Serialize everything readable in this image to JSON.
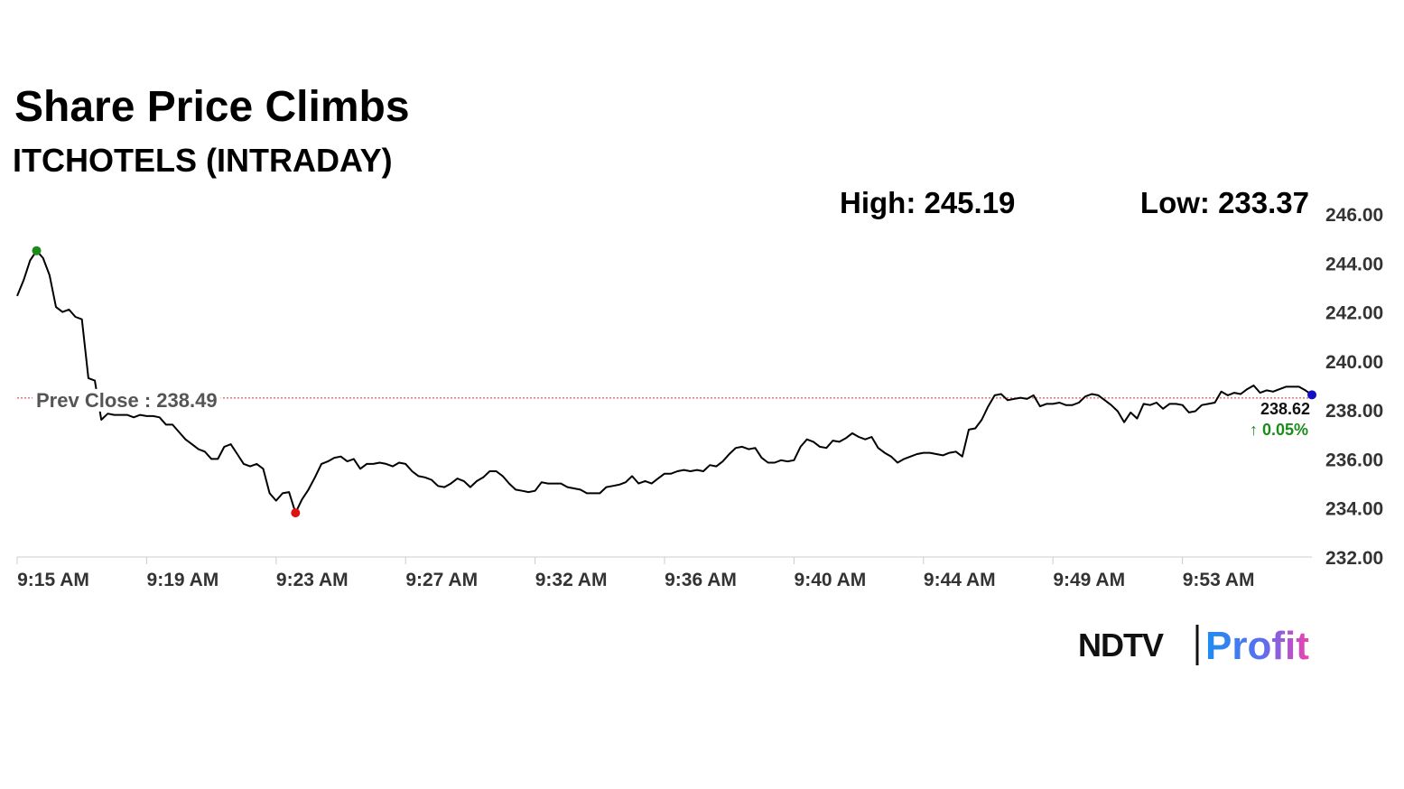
{
  "chart_data": {
    "type": "line",
    "title": "Share Price Climbs",
    "subtitle": "ITCHOTELS (INTRADAY)",
    "high_label": "High: 245.19",
    "low_label": "Low: 233.37",
    "last_price_label": "238.62",
    "change_label": "↑ 0.05%",
    "prev_close": {
      "value": 238.49,
      "label": "Prev Close : 238.49",
      "color": "#d03030"
    },
    "color": "#000000",
    "high_color": "#1a8c1a",
    "low_color": "#e01010",
    "last_color": "#1010c0",
    "categories": [
      "9:15 AM",
      null,
      null,
      null,
      null,
      null,
      null,
      null,
      null,
      null,
      null,
      null,
      null,
      null,
      null,
      null,
      null,
      null,
      null,
      null,
      "9:19 AM",
      null,
      null,
      null,
      null,
      null,
      null,
      null,
      null,
      null,
      null,
      null,
      null,
      null,
      null,
      null,
      null,
      null,
      null,
      null,
      "9:23 AM",
      null,
      null,
      null,
      null,
      null,
      null,
      null,
      null,
      null,
      null,
      null,
      null,
      null,
      null,
      null,
      null,
      null,
      null,
      null,
      "9:27 AM",
      null,
      null,
      null,
      null,
      null,
      null,
      null,
      null,
      null,
      null,
      null,
      null,
      null,
      null,
      null,
      null,
      null,
      null,
      null,
      "9:32 AM",
      null,
      null,
      null,
      null,
      null,
      null,
      null,
      null,
      null,
      null,
      null,
      null,
      null,
      null,
      null,
      null,
      null,
      null,
      null,
      "9:36 AM",
      null,
      null,
      null,
      null,
      null,
      null,
      null,
      null,
      null,
      null,
      null,
      null,
      null,
      null,
      null,
      null,
      null,
      null,
      null,
      "9:40 AM",
      null,
      null,
      null,
      null,
      null,
      null,
      null,
      null,
      null,
      null,
      null,
      null,
      null,
      null,
      null,
      null,
      null,
      null,
      null,
      "9:44 AM",
      null,
      null,
      null,
      null,
      null,
      null,
      null,
      null,
      null,
      null,
      null,
      null,
      null,
      null,
      null,
      null,
      null,
      null,
      null,
      "9:49 AM",
      null,
      null,
      null,
      null,
      null,
      null,
      null,
      null,
      null,
      null,
      null,
      null,
      null,
      null,
      null,
      null,
      null,
      null,
      null,
      "9:53 AM",
      null,
      null,
      null,
      null,
      null,
      null,
      null,
      null,
      null,
      null,
      null,
      null,
      null,
      null,
      null,
      null,
      null,
      null,
      null,
      null
    ],
    "values": [
      242.65,
      243.3,
      244.1,
      244.5,
      244.2,
      243.5,
      242.2,
      242.0,
      242.1,
      241.8,
      241.7,
      239.3,
      239.2,
      237.6,
      237.85,
      237.8,
      237.8,
      237.8,
      237.7,
      237.8,
      237.75,
      237.75,
      237.7,
      237.4,
      237.4,
      237.1,
      236.8,
      236.6,
      236.4,
      236.3,
      236.0,
      236.0,
      236.5,
      236.6,
      236.2,
      235.8,
      235.7,
      235.8,
      235.6,
      234.6,
      234.3,
      234.6,
      234.65,
      233.8,
      234.35,
      234.75,
      235.25,
      235.8,
      235.9,
      236.05,
      236.1,
      235.9,
      236.0,
      235.6,
      235.8,
      235.8,
      235.85,
      235.8,
      235.7,
      235.85,
      235.8,
      235.5,
      235.3,
      235.25,
      235.15,
      234.9,
      234.85,
      235.0,
      235.2,
      235.1,
      234.85,
      235.1,
      235.25,
      235.5,
      235.5,
      235.3,
      235.0,
      234.75,
      234.7,
      234.65,
      234.7,
      235.05,
      235.0,
      235.0,
      235.0,
      234.85,
      234.8,
      234.75,
      234.6,
      234.6,
      234.6,
      234.85,
      234.9,
      234.95,
      235.05,
      235.3,
      235.0,
      235.1,
      235.0,
      235.2,
      235.4,
      235.4,
      235.5,
      235.55,
      235.5,
      235.55,
      235.5,
      235.75,
      235.7,
      235.9,
      236.2,
      236.45,
      236.5,
      236.4,
      236.45,
      236.05,
      235.85,
      235.85,
      235.95,
      235.9,
      235.95,
      236.5,
      236.8,
      236.7,
      236.5,
      236.45,
      236.75,
      236.7,
      236.85,
      237.05,
      236.9,
      236.8,
      236.9,
      236.45,
      236.25,
      236.1,
      235.85,
      236.0,
      236.1,
      236.2,
      236.25,
      236.25,
      236.2,
      236.15,
      236.25,
      236.3,
      236.1,
      237.2,
      237.25,
      237.6,
      238.15,
      238.6,
      238.65,
      238.4,
      238.45,
      238.5,
      238.45,
      238.6,
      238.15,
      238.25,
      238.25,
      238.3,
      238.2,
      238.2,
      238.3,
      238.55,
      238.65,
      238.6,
      238.4,
      238.2,
      237.95,
      237.5,
      237.9,
      237.65,
      238.25,
      238.2,
      238.3,
      238.05,
      238.25,
      238.25,
      238.2,
      237.9,
      237.95,
      238.2,
      238.25,
      238.3,
      238.75,
      238.6,
      238.7,
      238.65,
      238.85,
      239.0,
      238.7,
      238.8,
      238.75,
      238.85,
      238.95,
      238.95,
      238.95,
      238.8,
      238.62
    ],
    "ylim": [
      232,
      246
    ],
    "yticks": [
      {
        "value": 232,
        "label": "232.00"
      },
      {
        "value": 234,
        "label": "234.00"
      },
      {
        "value": 236,
        "label": "236.00"
      },
      {
        "value": 238,
        "label": "238.00"
      },
      {
        "value": 240,
        "label": "240.00"
      },
      {
        "value": 242,
        "label": "242.00"
      },
      {
        "value": 244,
        "label": "244.00"
      },
      {
        "value": 246,
        "label": "246.00"
      }
    ],
    "grid": false
  },
  "logo": {
    "name": "NDTV",
    "product": "Profit"
  }
}
